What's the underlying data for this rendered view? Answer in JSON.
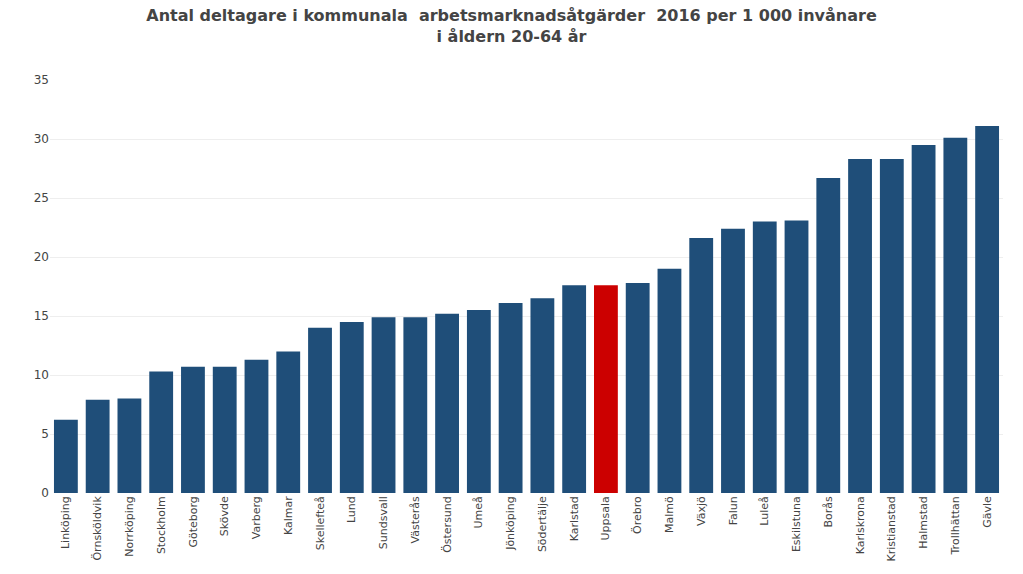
{
  "chart_data": {
    "type": "bar",
    "title": "Antal deltagare i kommunala  arbetsmarknadsåtgärder  2016 per 1 000 invånare",
    "subtitle": "i åldern 20-64 år",
    "categories": [
      "Linköping",
      "Örnsköldvik",
      "Norrköping",
      "Stockholm",
      "Göteborg",
      "Skövde",
      "Varberg",
      "Kalmar",
      "Skellefteå",
      "Lund",
      "Sundsvall",
      "Västerås",
      "Östersund",
      "Umeå",
      "Jönköping",
      "Södertälje",
      "Karlstad",
      "Uppsala",
      "Örebro",
      "Malmö",
      "Växjö",
      "Falun",
      "Luleå",
      "Eskilstuna",
      "Borås",
      "Karlskrona",
      "Kristianstad",
      "Halmstad",
      "Trollhättan",
      "Gävle"
    ],
    "values": [
      6.2,
      7.9,
      8.0,
      10.3,
      10.7,
      10.7,
      11.3,
      12.0,
      14.0,
      14.5,
      14.9,
      14.9,
      15.2,
      15.5,
      16.1,
      16.5,
      17.6,
      17.6,
      17.8,
      19.0,
      21.6,
      22.4,
      23.0,
      23.1,
      26.7,
      28.3,
      28.3,
      29.5,
      30.1,
      31.1
    ],
    "colors": [
      "#1F4E79",
      "#1F4E79",
      "#1F4E79",
      "#1F4E79",
      "#1F4E79",
      "#1F4E79",
      "#1F4E79",
      "#1F4E79",
      "#1F4E79",
      "#1F4E79",
      "#1F4E79",
      "#1F4E79",
      "#1F4E79",
      "#1F4E79",
      "#1F4E79",
      "#1F4E79",
      "#1F4E79",
      "#CC0000",
      "#1F4E79",
      "#1F4E79",
      "#1F4E79",
      "#1F4E79",
      "#1F4E79",
      "#1F4E79",
      "#1F4E79",
      "#1F4E79",
      "#1F4E79",
      "#1F4E79",
      "#1F4E79",
      "#1F4E79"
    ],
    "ylim": [
      0,
      35
    ],
    "yticks": [
      0,
      5,
      10,
      15,
      20,
      25,
      30,
      35
    ],
    "grid": true
  }
}
